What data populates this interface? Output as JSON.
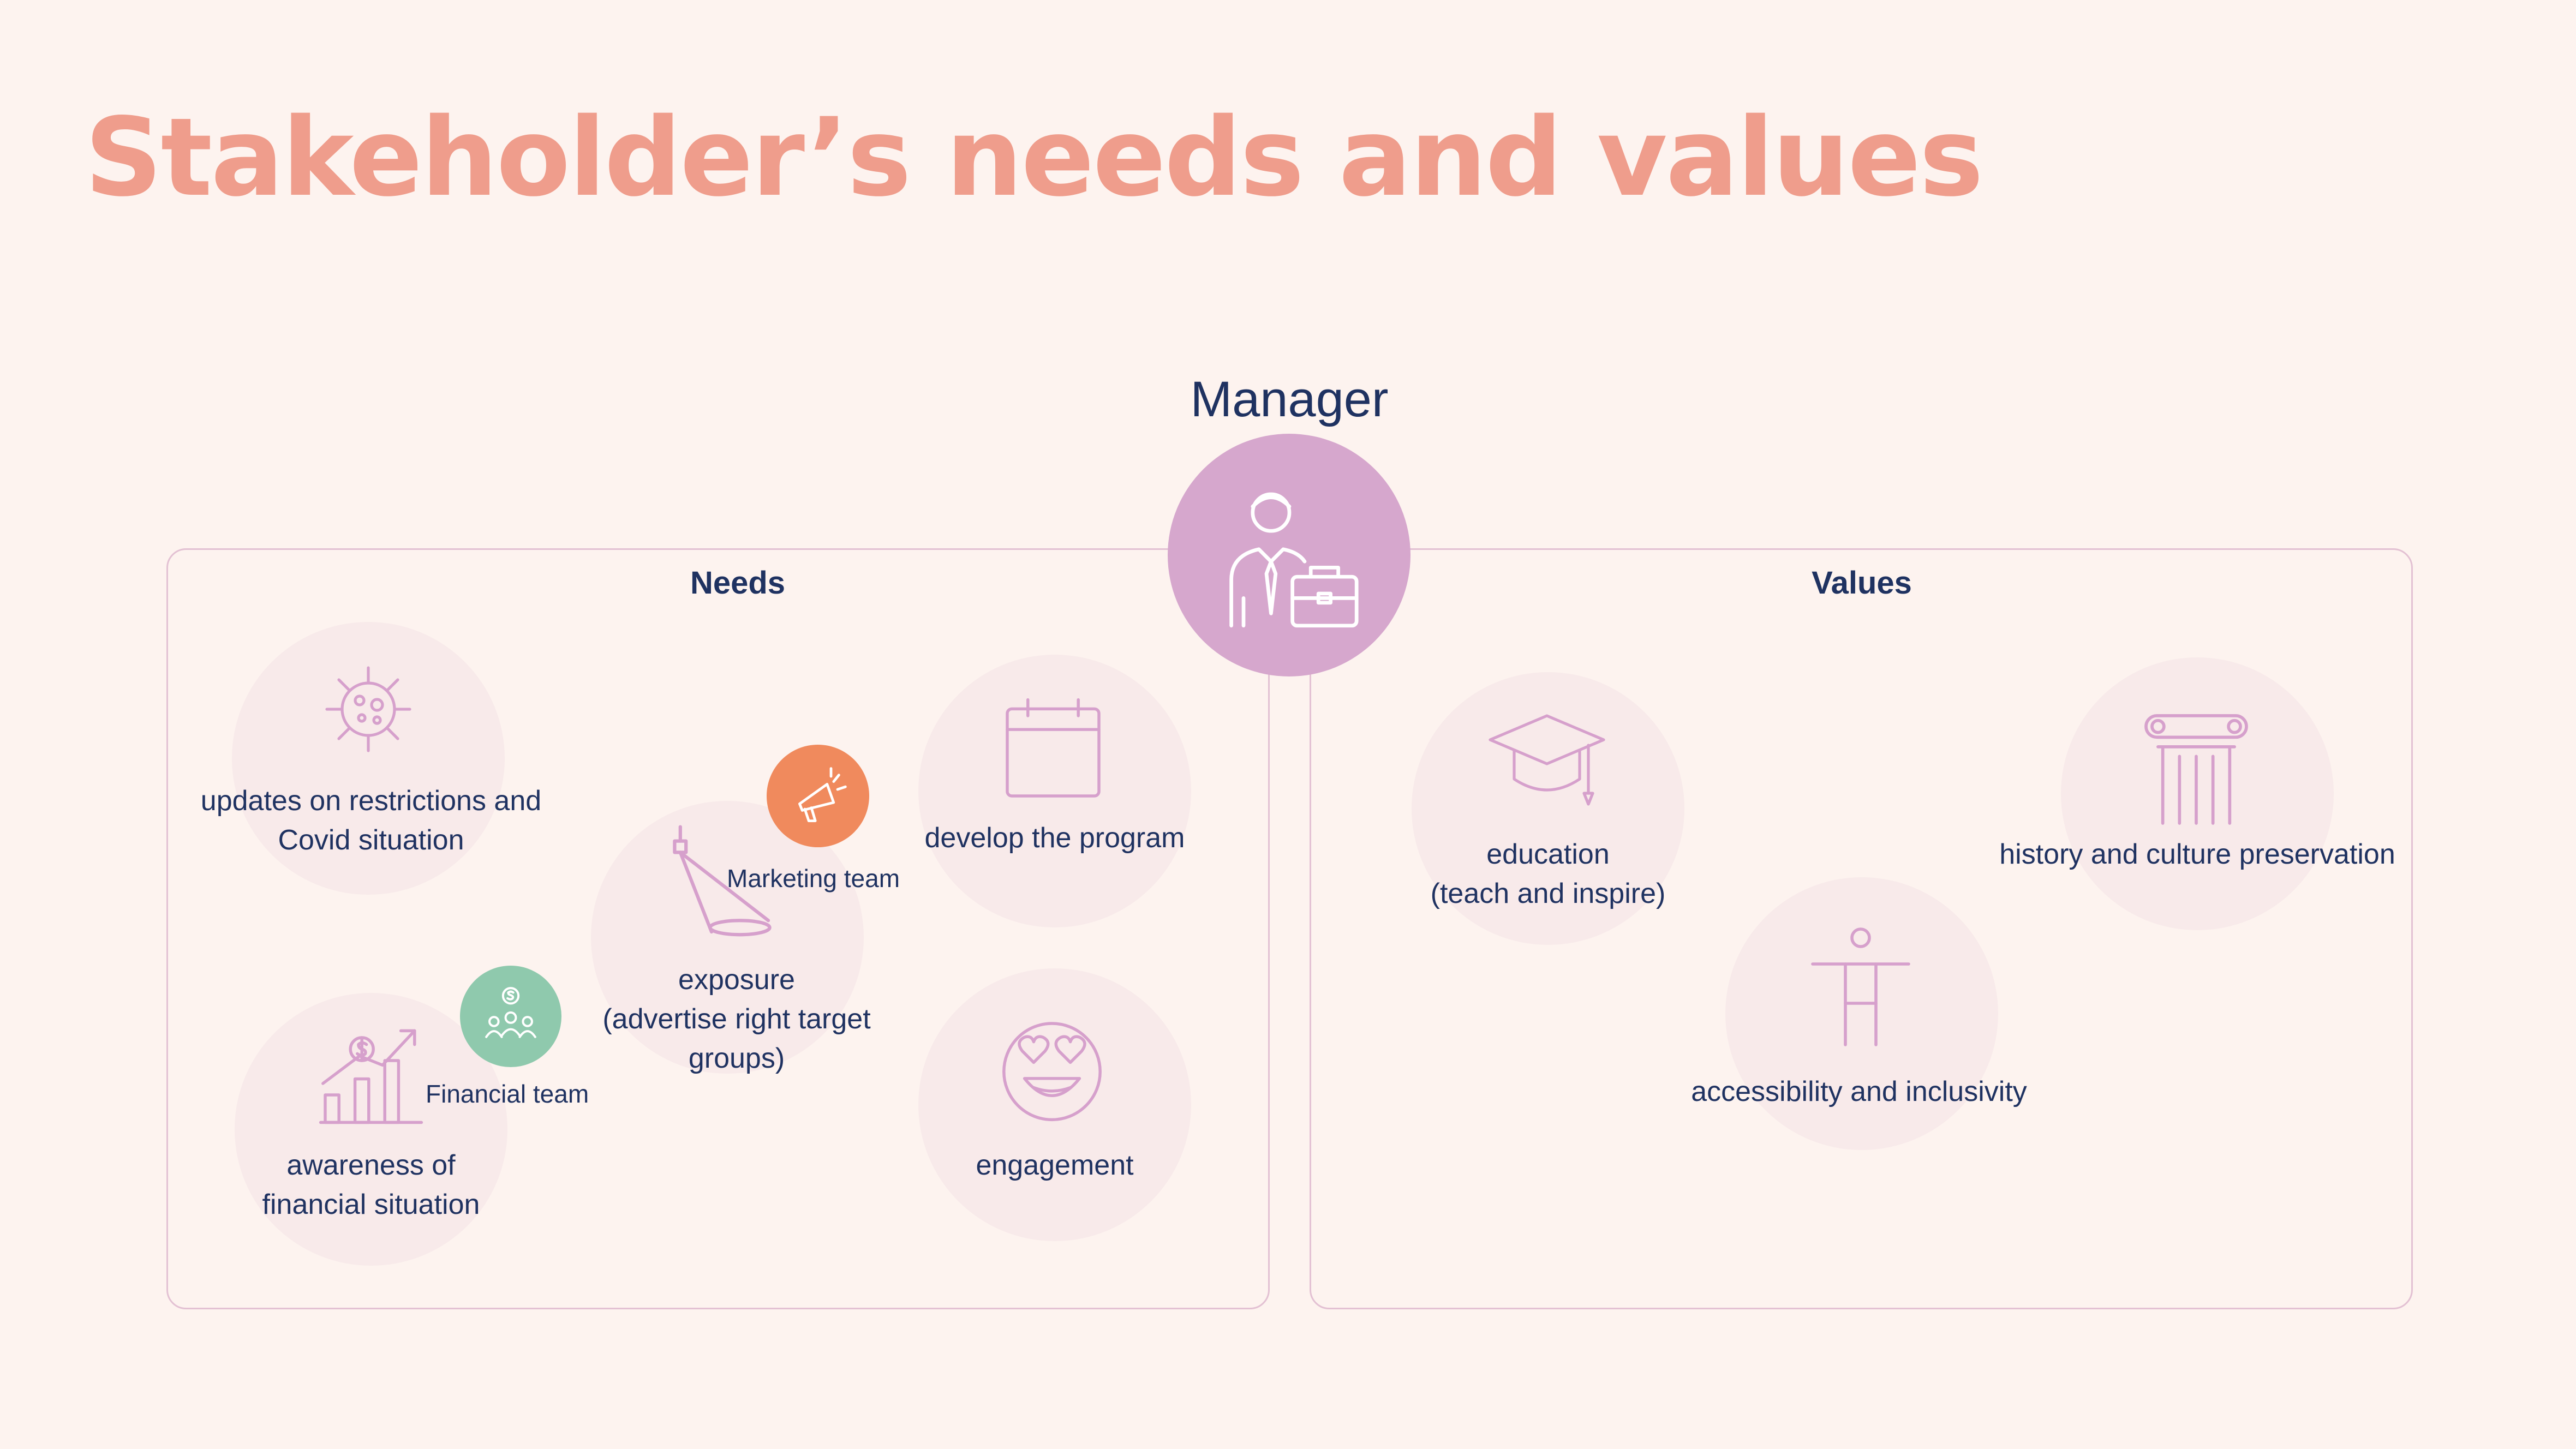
{
  "title": "Stakeholder’s needs and values",
  "manager": {
    "label": "Manager",
    "icon": "businessman-briefcase-icon"
  },
  "needs": {
    "heading": "Needs",
    "items": [
      {
        "line1": "updates on restrictions and",
        "line2": "Covid situation",
        "icon": "virus-icon"
      },
      {
        "line1": "exposure",
        "line2": "(advertise right target",
        "line3": "groups)",
        "icon": "spotlight-icon"
      },
      {
        "line1": "develop the program",
        "icon": "calendar-icon"
      },
      {
        "line1": "awareness of",
        "line2": "financial situation",
        "icon": "growth-chart-icon"
      },
      {
        "line1": "engagement",
        "icon": "heart-eyes-emoji-icon"
      }
    ],
    "teams": [
      {
        "label": "Marketing team",
        "color": "#f08a5d",
        "icon": "megaphone-icon"
      },
      {
        "label": "Financial team",
        "color": "#8fc9ad",
        "icon": "money-team-icon"
      }
    ]
  },
  "values": {
    "heading": "Values",
    "items": [
      {
        "line1": "education",
        "line2": "(teach and inspire)",
        "icon": "graduation-cap-icon"
      },
      {
        "line1": "history and culture preservation",
        "icon": "column-icon"
      },
      {
        "line1": "accessibility and inclusivity",
        "icon": "accessibility-icon"
      }
    ]
  },
  "colors": {
    "title": "#ef9d8c",
    "icon_stroke": "#d6a0cc",
    "manager_circle": "#d6a7cd",
    "bubble": "#f8eaea",
    "text": "#1f3261",
    "panel_border": "#e3c1d3",
    "background": "#fdf3ef"
  }
}
